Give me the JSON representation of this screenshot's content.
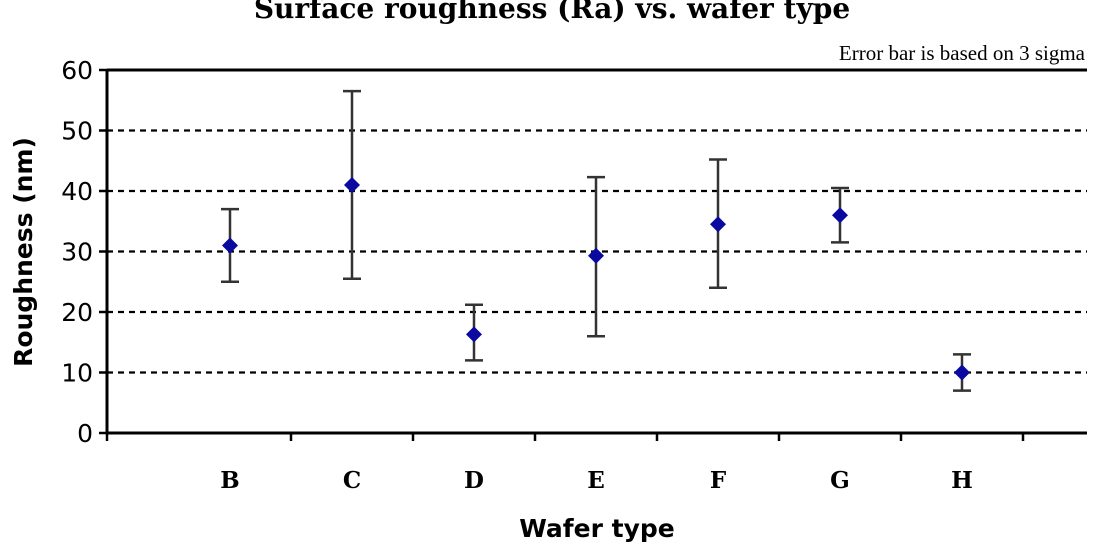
{
  "chart_data": {
    "type": "scatter",
    "title": "Surface roughness (Ra) vs. wafer type",
    "annotation": "Error bar is based on 3 sigma",
    "xlabel": "Wafer type",
    "ylabel": "Roughness (nm)",
    "ylim": [
      0,
      60
    ],
    "yticks": [
      "0",
      "10",
      "20",
      "30",
      "40",
      "50",
      "60"
    ],
    "grid": true,
    "categories": [
      "B",
      "C",
      "D",
      "E",
      "F",
      "G",
      "H"
    ],
    "series": [
      {
        "values": [
          31,
          41,
          16.3,
          29.3,
          34.5,
          36,
          10
        ],
        "error_low": [
          25,
          25.5,
          12,
          16,
          24,
          31.5,
          7
        ],
        "error_high": [
          37,
          56.5,
          21.2,
          42.3,
          45.2,
          40.5,
          13
        ],
        "color": "#0a0aa0"
      }
    ]
  }
}
